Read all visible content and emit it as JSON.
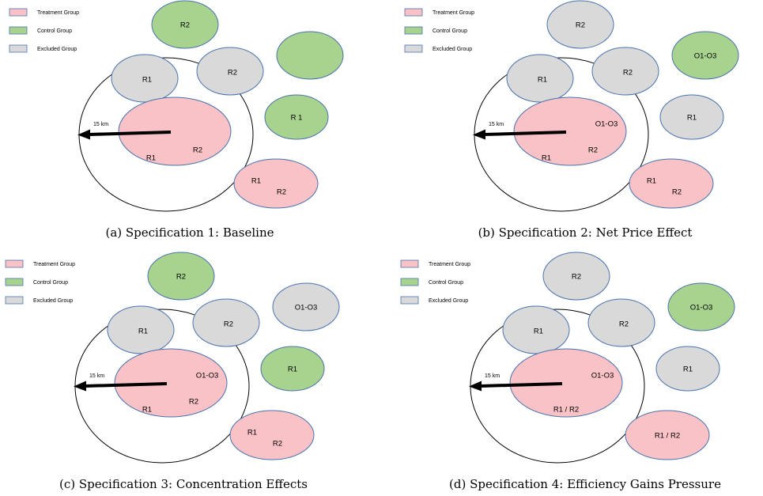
{
  "colors": {
    "treatment": "#F8C2C6",
    "control": "#A7D38F",
    "excluded": "#D9D9D9",
    "stroke": "#4A73AE"
  },
  "legend": [
    {
      "label": "Treatment Group",
      "group": "treatment"
    },
    {
      "label": "Control Group",
      "group": "control"
    },
    {
      "label": "Excluded Group",
      "group": "excluded"
    }
  ],
  "radius_label": "15 km",
  "panels": [
    {
      "caption": "(a) Specification 1: Baseline",
      "ellipses": [
        {
          "group": "control",
          "labels": [
            "R2"
          ]
        },
        {
          "group": "control",
          "labels": []
        },
        {
          "group": "excluded",
          "labels": [
            "R1"
          ]
        },
        {
          "group": "excluded",
          "labels": [
            "R2"
          ]
        },
        {
          "group": "control",
          "labels": [
            "R 1"
          ]
        },
        {
          "group": "treatment",
          "labels": [
            "R2",
            "R1"
          ]
        },
        {
          "group": "treatment",
          "labels": [
            "R1",
            "R2"
          ]
        }
      ]
    },
    {
      "caption": "(b) Specification 2: Net Price Effect",
      "ellipses": [
        {
          "group": "excluded",
          "labels": [
            "R2"
          ]
        },
        {
          "group": "control",
          "labels": [
            "O1-O3"
          ]
        },
        {
          "group": "excluded",
          "labels": [
            "R1"
          ]
        },
        {
          "group": "excluded",
          "labels": [
            "R2"
          ]
        },
        {
          "group": "excluded",
          "labels": [
            "R1"
          ]
        },
        {
          "group": "treatment",
          "labels": [
            "O1-O3",
            "R2",
            "R1"
          ]
        },
        {
          "group": "treatment",
          "labels": [
            "R1",
            "R2"
          ]
        }
      ]
    },
    {
      "caption": "(c) Specification 3: Concentration Effects",
      "ellipses": [
        {
          "group": "control",
          "labels": [
            "R2"
          ]
        },
        {
          "group": "excluded",
          "labels": [
            "O1-O3"
          ]
        },
        {
          "group": "excluded",
          "labels": [
            "R1"
          ]
        },
        {
          "group": "excluded",
          "labels": [
            "R2"
          ]
        },
        {
          "group": "control",
          "labels": [
            "R1"
          ]
        },
        {
          "group": "treatment",
          "labels": [
            "O1-O3",
            "R2",
            "R1"
          ]
        },
        {
          "group": "treatment",
          "labels": [
            "R1",
            "R2"
          ]
        }
      ]
    },
    {
      "caption": "(d) Specification 4: Efficiency Gains Pressure",
      "ellipses": [
        {
          "group": "excluded",
          "labels": [
            "R2"
          ]
        },
        {
          "group": "control",
          "labels": [
            "O1-O3"
          ]
        },
        {
          "group": "excluded",
          "labels": [
            "R1"
          ]
        },
        {
          "group": "excluded",
          "labels": [
            "R2"
          ]
        },
        {
          "group": "excluded",
          "labels": [
            "R1"
          ]
        },
        {
          "group": "treatment",
          "labels": [
            "O1-O3",
            "R1 / R2"
          ]
        },
        {
          "group": "treatment",
          "labels": [
            "R1 / R2"
          ]
        }
      ]
    }
  ]
}
